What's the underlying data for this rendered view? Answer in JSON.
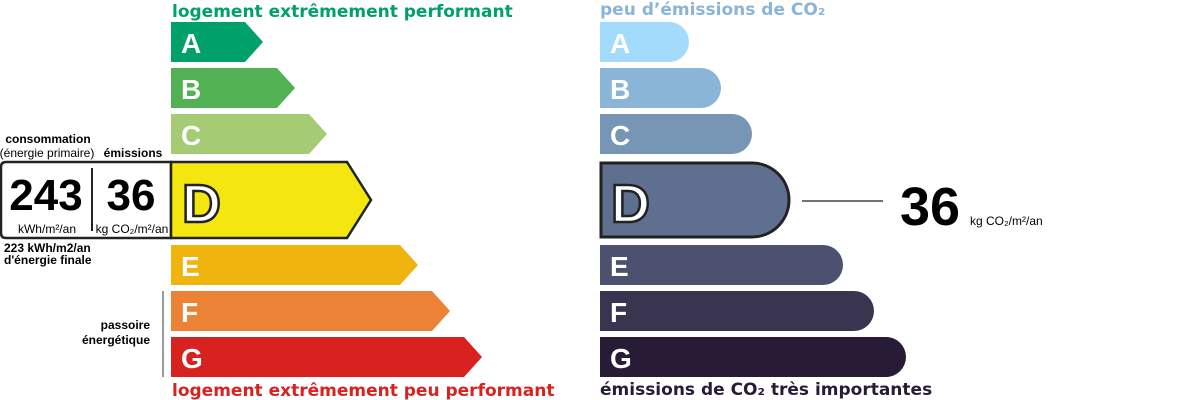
{
  "energy": {
    "top_caption": "logement extrêmement performant",
    "bottom_caption": "logement extrêmement peu performant",
    "top_color": "#00a06a",
    "bottom_color": "#d7221f",
    "classes": [
      {
        "letter": "A",
        "color": "#00a06a"
      },
      {
        "letter": "B",
        "color": "#52b153"
      },
      {
        "letter": "C",
        "color": "#a5cb74"
      },
      {
        "letter": "D",
        "color": "#f4e70f"
      },
      {
        "letter": "E",
        "color": "#f0b40f"
      },
      {
        "letter": "F",
        "color": "#eb8235"
      },
      {
        "letter": "G",
        "color": "#d7221f"
      }
    ],
    "current_class": "D",
    "consumption_label": "consommation",
    "consumption_sublabel": "(énergie primaire)",
    "emissions_label": "émissions",
    "consumption_value": "243",
    "consumption_unit": "kWh/m²/an",
    "emissions_value": "36",
    "emissions_unit": "kg CO₂/m²/an",
    "final_energy_line1": "223 kWh/m2/an",
    "final_energy_line2": "d'énergie finale",
    "passoire_line1": "passoire",
    "passoire_line2": "énergétique"
  },
  "climate": {
    "top_caption": "peu d’émissions de CO₂",
    "bottom_caption": "émissions de CO₂ très importantes",
    "top_color": "#8ab5d7",
    "bottom_color": "#281b35",
    "classes": [
      {
        "letter": "A",
        "color": "#a3dbfc"
      },
      {
        "letter": "B",
        "color": "#8ab5d7"
      },
      {
        "letter": "C",
        "color": "#7796b5"
      },
      {
        "letter": "D",
        "color": "#5e6f8f"
      },
      {
        "letter": "E",
        "color": "#4d5170"
      },
      {
        "letter": "F",
        "color": "#393551"
      },
      {
        "letter": "G",
        "color": "#281b35"
      }
    ],
    "current_class": "D",
    "value": "36",
    "unit": "kg CO₂/m²/an"
  }
}
